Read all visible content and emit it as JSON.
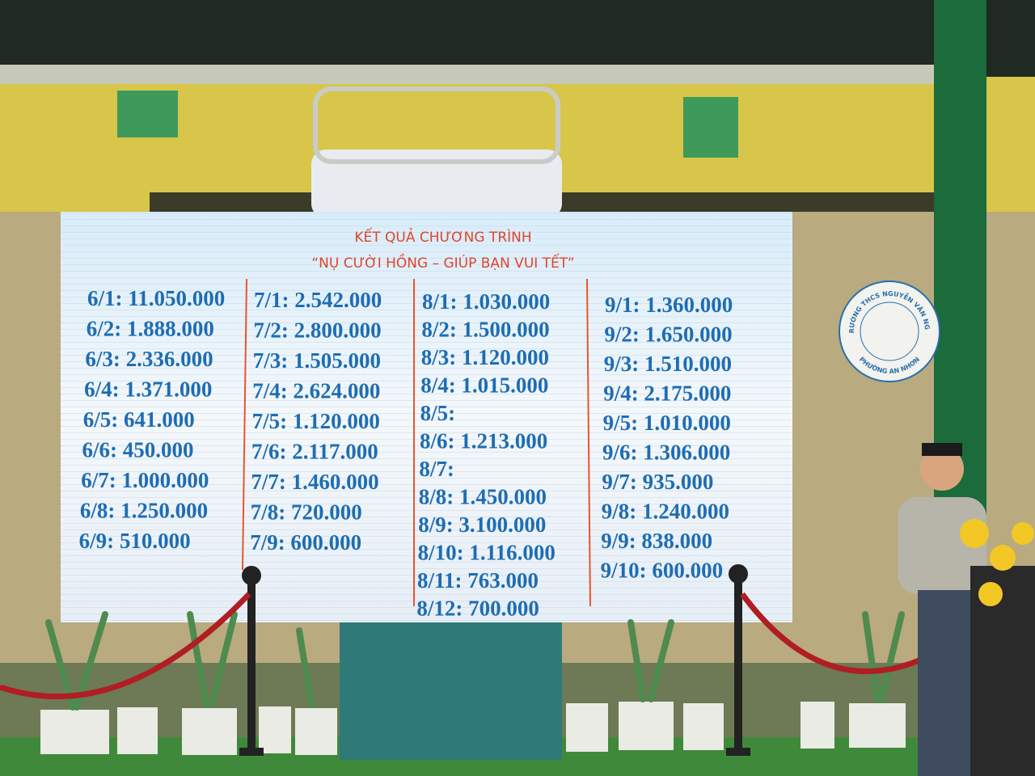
{
  "screen": {
    "title": "KẾT QUẢ CHƯƠNG TRÌNH",
    "subtitle": "“NỤ CƯỜI HỒNG – GIÚP BẠN VUI TẾT”",
    "columns": [
      [
        "6/1: 11.050.000",
        "6/2: 1.888.000",
        "6/3: 2.336.000",
        "6/4: 1.371.000",
        "6/5: 641.000",
        "6/6: 450.000",
        "6/7: 1.000.000",
        "6/8: 1.250.000",
        "6/9: 510.000"
      ],
      [
        "7/1: 2.542.000",
        "7/2: 2.800.000",
        "7/3: 1.505.000",
        "7/4: 2.624.000",
        "7/5: 1.120.000",
        "7/6: 2.117.000",
        "7/7: 1.460.000",
        "7/8: 720.000",
        "7/9: 600.000"
      ],
      [
        "8/1: 1.030.000",
        "8/2: 1.500.000",
        "8/3: 1.120.000",
        "8/4: 1.015.000",
        "8/5:",
        "8/6: 1.213.000",
        "8/7:",
        "8/8: 1.450.000",
        "8/9: 3.100.000",
        "8/10: 1.116.000",
        "8/11: 763.000",
        "8/12: 700.000"
      ],
      [
        "9/1: 1.360.000",
        "9/2: 1.650.000",
        "9/3: 1.510.000",
        "9/4: 2.175.000",
        "9/5: 1.010.000",
        "9/6: 1.306.000",
        "9/7: 935.000",
        "9/8: 1.240.000",
        "9/9: 838.000",
        "9/10: 600.000"
      ]
    ]
  },
  "logo": {
    "top": "TRƯỜNG THCS NGUYỄN VĂN NGHI",
    "bottom": "PHƯỜNG AN NHƠN"
  }
}
